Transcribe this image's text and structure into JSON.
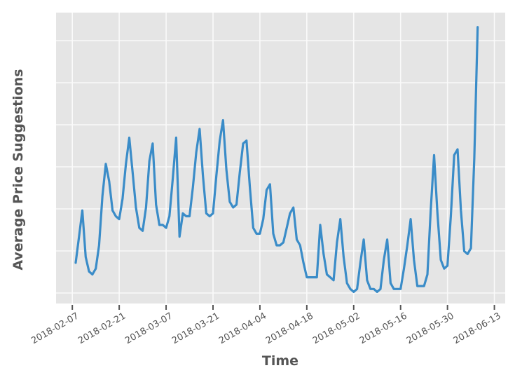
{
  "chart_data": {
    "type": "line",
    "title": "",
    "xlabel": "Time",
    "ylabel": "Average Price Suggestions",
    "x_tick_labels": [
      "2018-02-07",
      "2018-02-21",
      "2018-03-07",
      "2018-03-21",
      "2018-04-04",
      "2018-04-18",
      "2018-05-02",
      "2018-05-16",
      "2018-05-30",
      "2018-06-13"
    ],
    "x_tick_interval_days": 14,
    "y_tick_labels": [],
    "ylim": [
      0,
      100
    ],
    "y_units": "relative (y axis has no tick labels)",
    "grid": true,
    "legend": false,
    "series": [
      {
        "name": "average-price-suggestions",
        "color": "#3a8cc8",
        "sampling": "daily",
        "start_date": "2018-02-08",
        "end_date": "2018-06-08",
        "start_day_offset_from_first_tick": 1,
        "values": [
          14,
          23,
          32,
          16,
          11,
          10,
          12,
          20,
          37,
          48,
          42,
          32,
          30,
          29,
          36,
          48,
          57,
          45,
          33,
          26,
          25,
          33,
          49,
          55,
          34,
          27,
          27,
          26,
          30,
          43,
          57,
          23,
          31,
          30,
          30,
          40,
          52,
          60,
          44,
          31,
          30,
          31,
          44,
          56,
          63,
          46,
          35,
          33,
          34,
          45,
          55,
          56,
          40,
          26,
          24,
          24,
          29,
          39,
          41,
          24,
          20,
          20,
          21,
          26,
          31,
          33,
          22,
          20,
          14,
          9,
          9,
          9,
          9,
          27,
          17,
          10,
          9,
          8,
          21,
          29,
          16,
          7,
          5,
          4,
          5,
          14,
          22,
          8,
          5,
          5,
          4,
          5,
          15,
          22,
          7,
          5,
          5,
          5,
          12,
          20,
          29,
          15,
          6,
          6,
          6,
          10,
          32,
          51,
          31,
          15,
          12,
          13,
          30,
          51,
          53,
          32,
          18,
          17,
          19,
          50,
          95
        ]
      }
    ],
    "style": {
      "plot_background": "#e5e5e5",
      "grid_color": "#fafafa",
      "text_color": "#555555",
      "tick_color": "#555555",
      "tick_label_rotation_deg": 30,
      "line_width": 3.2
    }
  }
}
